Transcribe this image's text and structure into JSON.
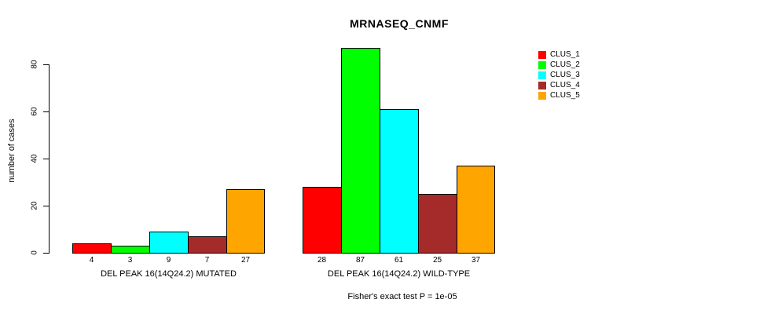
{
  "chart_data": {
    "type": "bar",
    "title": "MRNASEQ_CNMF",
    "ylabel": "number of cases",
    "xlabel": "",
    "annotation": "Fisher's exact test P = 1e-05",
    "yticks": [
      0,
      20,
      40,
      60,
      80
    ],
    "ylim": [
      0,
      87
    ],
    "grid": false,
    "legend_position": "right",
    "series_names": [
      "CLUS_1",
      "CLUS_2",
      "CLUS_3",
      "CLUS_4",
      "CLUS_5"
    ],
    "series_colors": [
      "#FF0000",
      "#00FF00",
      "#00FFFF",
      "#A52A2A",
      "#FFA500"
    ],
    "groups": [
      {
        "label": "DEL PEAK 16(14Q24.2) MUTATED",
        "values": [
          4,
          3,
          9,
          7,
          27
        ]
      },
      {
        "label": "DEL PEAK 16(14Q24.2) WILD-TYPE",
        "values": [
          28,
          87,
          61,
          25,
          37
        ]
      }
    ]
  }
}
